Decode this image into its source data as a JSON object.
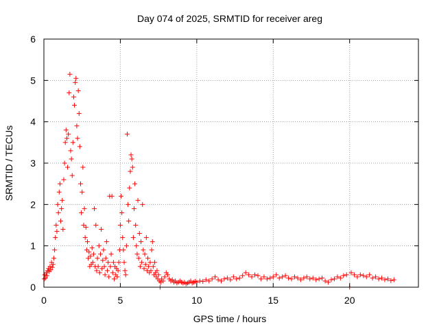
{
  "chart_data": {
    "type": "scatter",
    "title": "Day 074 of 2025, SRMTID for receiver areg",
    "xlabel": "GPS time / hours",
    "ylabel": "SRMTID / TECUs",
    "xlim": [
      0,
      24.5
    ],
    "ylim": [
      0,
      6
    ],
    "xticks": [
      0,
      5,
      10,
      15,
      20
    ],
    "xtick_labels": [
      "0",
      "5",
      "10",
      "15",
      "20"
    ],
    "yticks": [
      0,
      1,
      2,
      3,
      4,
      5,
      6
    ],
    "ytick_labels": [
      "0",
      "1",
      "2",
      "3",
      "4",
      "5",
      "6"
    ],
    "grid": true,
    "marker": "+",
    "color": "#ff0000",
    "series": [
      {
        "name": "SRMTID",
        "points": [
          [
            0.02,
            0.2
          ],
          [
            0.05,
            0.3
          ],
          [
            0.1,
            0.22
          ],
          [
            0.15,
            0.35
          ],
          [
            0.2,
            0.28
          ],
          [
            0.25,
            0.4
          ],
          [
            0.3,
            0.45
          ],
          [
            0.35,
            0.38
          ],
          [
            0.4,
            0.5
          ],
          [
            0.45,
            0.42
          ],
          [
            0.5,
            0.6
          ],
          [
            0.55,
            0.48
          ],
          [
            0.6,
            0.55
          ],
          [
            0.65,
            0.7
          ],
          [
            0.7,
            0.9
          ],
          [
            0.75,
            1.2
          ],
          [
            0.8,
            1.5
          ],
          [
            0.85,
            1.35
          ],
          [
            0.9,
            2.0
          ],
          [
            0.95,
            1.8
          ],
          [
            1.0,
            2.3
          ],
          [
            1.05,
            2.5
          ],
          [
            1.1,
            1.6
          ],
          [
            1.15,
            1.9
          ],
          [
            1.2,
            2.1
          ],
          [
            1.25,
            1.4
          ],
          [
            1.3,
            2.6
          ],
          [
            1.35,
            3.0
          ],
          [
            1.4,
            3.5
          ],
          [
            1.45,
            3.8
          ],
          [
            1.5,
            3.6
          ],
          [
            1.55,
            2.9
          ],
          [
            1.6,
            3.7
          ],
          [
            1.65,
            4.7
          ],
          [
            1.7,
            5.15
          ],
          [
            1.75,
            3.3
          ],
          [
            1.8,
            3.1
          ],
          [
            1.85,
            2.7
          ],
          [
            1.9,
            3.5
          ],
          [
            1.95,
            4.6
          ],
          [
            2.0,
            4.4
          ],
          [
            2.05,
            4.95
          ],
          [
            2.1,
            5.05
          ],
          [
            2.15,
            3.9
          ],
          [
            2.2,
            3.6
          ],
          [
            2.25,
            4.75
          ],
          [
            2.3,
            4.2
          ],
          [
            2.35,
            3.4
          ],
          [
            2.4,
            2.5
          ],
          [
            2.45,
            1.8
          ],
          [
            2.5,
            2.3
          ],
          [
            2.55,
            2.9
          ],
          [
            2.6,
            1.5
          ],
          [
            2.65,
            1.9
          ],
          [
            2.7,
            1.2
          ],
          [
            2.75,
            1.45
          ],
          [
            2.8,
            0.9
          ],
          [
            2.85,
            1.1
          ],
          [
            2.9,
            0.7
          ],
          [
            2.95,
            0.85
          ],
          [
            3.0,
            0.5
          ],
          [
            3.05,
            0.75
          ],
          [
            3.1,
            0.55
          ],
          [
            3.15,
            0.95
          ],
          [
            3.2,
            0.6
          ],
          [
            3.25,
            0.8
          ],
          [
            3.3,
            1.9
          ],
          [
            3.35,
            0.5
          ],
          [
            3.4,
            1.5
          ],
          [
            3.45,
            0.4
          ],
          [
            3.5,
            0.7
          ],
          [
            3.55,
            0.5
          ],
          [
            3.6,
            1.0
          ],
          [
            3.65,
            0.35
          ],
          [
            3.7,
            0.8
          ],
          [
            3.75,
            1.4
          ],
          [
            3.8,
            0.45
          ],
          [
            3.85,
            0.65
          ],
          [
            3.9,
            0.9
          ],
          [
            3.95,
            0.5
          ],
          [
            4.0,
            0.3
          ],
          [
            4.05,
            0.7
          ],
          [
            4.1,
            1.1
          ],
          [
            4.15,
            0.4
          ],
          [
            4.2,
            0.6
          ],
          [
            4.25,
            0.25
          ],
          [
            4.3,
            2.2
          ],
          [
            4.35,
            0.5
          ],
          [
            4.4,
            0.8
          ],
          [
            4.45,
            2.2
          ],
          [
            4.5,
            0.35
          ],
          [
            4.55,
            0.6
          ],
          [
            4.6,
            0.2
          ],
          [
            4.65,
            0.5
          ],
          [
            4.7,
            0.3
          ],
          [
            4.75,
            0.45
          ],
          [
            4.8,
            0.25
          ],
          [
            4.85,
            0.4
          ],
          [
            4.9,
            0.6
          ],
          [
            4.95,
            0.9
          ],
          [
            5.0,
            1.5
          ],
          [
            5.05,
            2.2
          ],
          [
            5.1,
            1.8
          ],
          [
            5.15,
            1.2
          ],
          [
            5.2,
            0.9
          ],
          [
            5.25,
            0.6
          ],
          [
            5.3,
            0.4
          ],
          [
            5.35,
            0.3
          ],
          [
            5.4,
            1.0
          ],
          [
            5.45,
            3.7
          ],
          [
            5.5,
            2.0
          ],
          [
            5.55,
            1.6
          ],
          [
            5.6,
            2.4
          ],
          [
            5.65,
            2.8
          ],
          [
            5.7,
            3.2
          ],
          [
            5.75,
            3.1
          ],
          [
            5.8,
            2.9
          ],
          [
            5.85,
            1.2
          ],
          [
            5.9,
            1.9
          ],
          [
            5.95,
            2.5
          ],
          [
            6.0,
            1.5
          ],
          [
            6.05,
            1.0
          ],
          [
            6.1,
            0.8
          ],
          [
            6.15,
            2.1
          ],
          [
            6.2,
            0.7
          ],
          [
            6.25,
            1.3
          ],
          [
            6.3,
            0.5
          ],
          [
            6.35,
            1.1
          ],
          [
            6.4,
            0.6
          ],
          [
            6.45,
            2.0
          ],
          [
            6.5,
            0.9
          ],
          [
            6.55,
            0.45
          ],
          [
            6.6,
            0.8
          ],
          [
            6.65,
            0.55
          ],
          [
            6.7,
            1.2
          ],
          [
            6.75,
            0.4
          ],
          [
            6.8,
            0.7
          ],
          [
            6.85,
            0.5
          ],
          [
            6.9,
            0.35
          ],
          [
            6.95,
            0.6
          ],
          [
            7.0,
            0.4
          ],
          [
            7.05,
            0.9
          ],
          [
            7.1,
            1.1
          ],
          [
            7.15,
            0.5
          ],
          [
            7.2,
            0.3
          ],
          [
            7.25,
            0.6
          ],
          [
            7.3,
            0.35
          ],
          [
            7.35,
            0.25
          ],
          [
            7.4,
            0.4
          ],
          [
            7.45,
            0.2
          ],
          [
            7.5,
            0.3
          ],
          [
            7.55,
            0.15
          ],
          [
            7.6,
            0.0
          ],
          [
            7.65,
            0.12
          ],
          [
            7.7,
            0.2
          ],
          [
            7.8,
            0.15
          ],
          [
            7.9,
            0.25
          ],
          [
            8.0,
            0.35
          ],
          [
            8.1,
            0.3
          ],
          [
            8.2,
            0.2
          ],
          [
            8.3,
            0.15
          ],
          [
            8.4,
            0.18
          ],
          [
            8.5,
            0.12
          ],
          [
            8.6,
            0.15
          ],
          [
            8.7,
            0.1
          ],
          [
            8.8,
            0.12
          ],
          [
            8.9,
            0.15
          ],
          [
            9.0,
            0.12
          ],
          [
            9.1,
            0.1
          ],
          [
            9.2,
            0.12
          ],
          [
            9.3,
            0.08
          ],
          [
            9.4,
            0.1
          ],
          [
            9.5,
            0.12
          ],
          [
            9.6,
            0.15
          ],
          [
            9.7,
            0.1
          ],
          [
            9.8,
            0.12
          ],
          [
            9.9,
            0.14
          ],
          [
            10.0,
            0.12
          ],
          [
            10.2,
            0.15
          ],
          [
            10.4,
            0.14
          ],
          [
            10.6,
            0.18
          ],
          [
            10.8,
            0.15
          ],
          [
            11.0,
            0.2
          ],
          [
            11.2,
            0.25
          ],
          [
            11.4,
            0.18
          ],
          [
            11.6,
            0.15
          ],
          [
            11.8,
            0.2
          ],
          [
            12.0,
            0.22
          ],
          [
            12.2,
            0.18
          ],
          [
            12.4,
            0.25
          ],
          [
            12.6,
            0.2
          ],
          [
            12.8,
            0.22
          ],
          [
            13.0,
            0.28
          ],
          [
            13.2,
            0.35
          ],
          [
            13.4,
            0.3
          ],
          [
            13.6,
            0.25
          ],
          [
            13.8,
            0.3
          ],
          [
            14.0,
            0.28
          ],
          [
            14.2,
            0.2
          ],
          [
            14.4,
            0.25
          ],
          [
            14.6,
            0.2
          ],
          [
            14.8,
            0.22
          ],
          [
            15.0,
            0.25
          ],
          [
            15.2,
            0.3
          ],
          [
            15.4,
            0.22
          ],
          [
            15.6,
            0.25
          ],
          [
            15.8,
            0.28
          ],
          [
            16.0,
            0.22
          ],
          [
            16.2,
            0.2
          ],
          [
            16.4,
            0.25
          ],
          [
            16.6,
            0.22
          ],
          [
            16.8,
            0.18
          ],
          [
            17.0,
            0.22
          ],
          [
            17.2,
            0.25
          ],
          [
            17.4,
            0.2
          ],
          [
            17.6,
            0.22
          ],
          [
            17.8,
            0.18
          ],
          [
            18.0,
            0.2
          ],
          [
            18.2,
            0.22
          ],
          [
            18.4,
            0.15
          ],
          [
            18.6,
            0.12
          ],
          [
            18.8,
            0.18
          ],
          [
            19.0,
            0.2
          ],
          [
            19.2,
            0.25
          ],
          [
            19.4,
            0.22
          ],
          [
            19.6,
            0.28
          ],
          [
            19.8,
            0.3
          ],
          [
            20.0,
            0.0
          ],
          [
            20.1,
            0.35
          ],
          [
            20.3,
            0.3
          ],
          [
            20.5,
            0.25
          ],
          [
            20.7,
            0.3
          ],
          [
            20.9,
            0.28
          ],
          [
            21.1,
            0.25
          ],
          [
            21.3,
            0.3
          ],
          [
            21.5,
            0.22
          ],
          [
            21.7,
            0.25
          ],
          [
            21.9,
            0.2
          ],
          [
            22.1,
            0.22
          ],
          [
            22.3,
            0.18
          ],
          [
            22.5,
            0.2
          ],
          [
            22.7,
            0.16
          ],
          [
            22.9,
            0.18
          ]
        ]
      }
    ]
  }
}
